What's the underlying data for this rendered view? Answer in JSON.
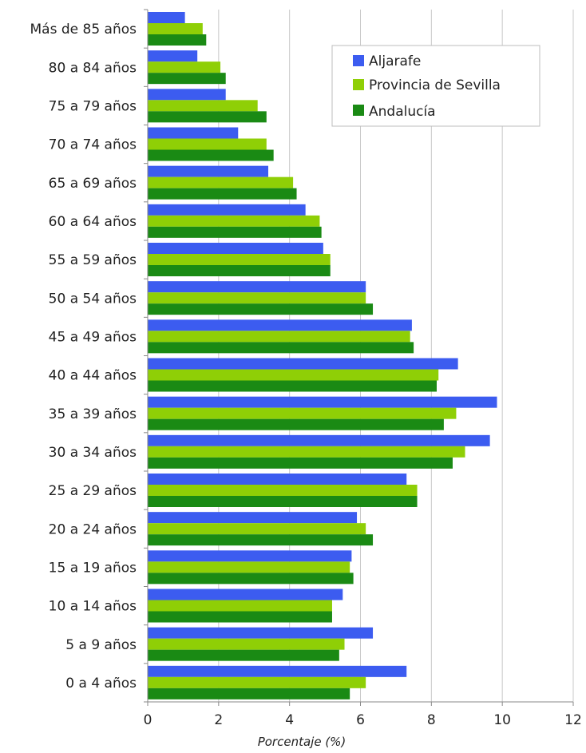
{
  "colors": {
    "aljarafe": "#3c5cf0",
    "provincia": "#8fcf06",
    "andalucia": "#1a8a14",
    "grid": "#c8c8c8",
    "axis": "#888888"
  },
  "chart_data": {
    "type": "bar",
    "orientation": "horizontal",
    "xlabel": "Porcentaje (%)",
    "ylabel": "",
    "xlim": [
      0,
      12
    ],
    "xticks": [
      "0",
      "2",
      "4",
      "6",
      "8",
      "10",
      "12"
    ],
    "grid": true,
    "legend_position": "top-right",
    "categories": [
      "Más de 85 años",
      "80 a 84 años",
      "75 a 79 años",
      "70 a 74 años",
      "65 a 69 años",
      "60 a 64 años",
      "55 a 59 años",
      "50 a 54 años",
      "45 a 49 años",
      "40 a 44 años",
      "35 a 39 años",
      "30 a 34 años",
      "25 a 29 años",
      "20 a 24 años",
      "15 a 19 años",
      "10 a 14 años",
      "5 a 9 años",
      "0 a 4 años"
    ],
    "series": [
      {
        "name": "Aljarafe",
        "color_key": "aljarafe",
        "values": [
          1.05,
          1.4,
          2.2,
          2.55,
          3.4,
          4.45,
          4.95,
          6.15,
          7.45,
          8.75,
          9.85,
          9.65,
          7.3,
          5.9,
          5.75,
          5.5,
          6.35,
          7.3
        ]
      },
      {
        "name": "Provincia de Sevilla",
        "color_key": "provincia",
        "values": [
          1.55,
          2.05,
          3.1,
          3.35,
          4.1,
          4.85,
          5.15,
          6.15,
          7.4,
          8.2,
          8.7,
          8.95,
          7.6,
          6.15,
          5.7,
          5.2,
          5.55,
          6.15
        ]
      },
      {
        "name": "Andalucía",
        "color_key": "andalucia",
        "values": [
          1.65,
          2.2,
          3.35,
          3.55,
          4.2,
          4.9,
          5.15,
          6.35,
          7.5,
          8.15,
          8.35,
          8.6,
          7.6,
          6.35,
          5.8,
          5.2,
          5.4,
          5.7
        ]
      }
    ]
  }
}
